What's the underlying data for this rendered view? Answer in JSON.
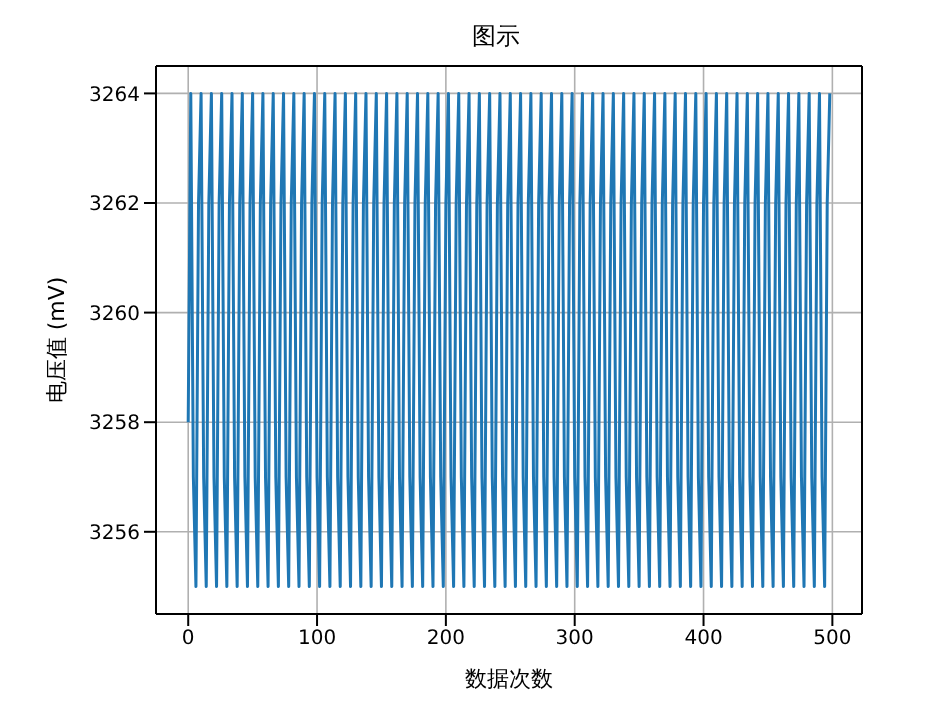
{
  "chart_data": {
    "type": "line",
    "title": "图示",
    "xlabel": "数据次数",
    "ylabel": "电压值 (mV)",
    "x": [
      0,
      2,
      4,
      6,
      8,
      10,
      12,
      14,
      16,
      18,
      20,
      22,
      24,
      26,
      28,
      30,
      32,
      34,
      36,
      38,
      40,
      42,
      44,
      46,
      48,
      50,
      52,
      54,
      56,
      58,
      60,
      62,
      64,
      66,
      68,
      70,
      72,
      74,
      76,
      78,
      80,
      82,
      84,
      86,
      88,
      90,
      92,
      94,
      96,
      98,
      100,
      102,
      104,
      106,
      108,
      110,
      112,
      114,
      116,
      118,
      120,
      122,
      124,
      126,
      128,
      130,
      132,
      134,
      136,
      138,
      140,
      142,
      144,
      146,
      148,
      150,
      152,
      154,
      156,
      158,
      160,
      162,
      164,
      166,
      168,
      170,
      172,
      174,
      176,
      178,
      180,
      182,
      184,
      186,
      188,
      190,
      192,
      194,
      196,
      198,
      200,
      202,
      204,
      206,
      208,
      210,
      212,
      214,
      216,
      218,
      220,
      222,
      224,
      226,
      228,
      230,
      232,
      234,
      236,
      238,
      240,
      242,
      244,
      246,
      248,
      250,
      252,
      254,
      256,
      258,
      260,
      262,
      264,
      266,
      268,
      270,
      272,
      274,
      276,
      278,
      280,
      282,
      284,
      286,
      288,
      290,
      292,
      294,
      296,
      298,
      300,
      302,
      304,
      306,
      308,
      310,
      312,
      314,
      316,
      318,
      320,
      322,
      324,
      326,
      328,
      330,
      332,
      334,
      336,
      338,
      340,
      342,
      344,
      346,
      348,
      350,
      352,
      354,
      356,
      358,
      360,
      362,
      364,
      366,
      368,
      370,
      372,
      374,
      376,
      378,
      380,
      382,
      384,
      386,
      388,
      390,
      392,
      394,
      396,
      398,
      400,
      402,
      404,
      406,
      408,
      410,
      412,
      414,
      416,
      418,
      420,
      422,
      424,
      426,
      428,
      430,
      432,
      434,
      436,
      438,
      440,
      442,
      444,
      446,
      448,
      450,
      452,
      454,
      456,
      458,
      460,
      462,
      464,
      466,
      468,
      470,
      472,
      474,
      476,
      478,
      480,
      482,
      484,
      486,
      488,
      490,
      492,
      494,
      496,
      498
    ],
    "series": [
      {
        "color": "#1f77b4",
        "values": [
          3258,
          3264,
          3257,
          3255,
          3262,
          3264,
          3257,
          3255,
          3262,
          3264,
          3257,
          3255,
          3262,
          3264,
          3257,
          3255,
          3262,
          3264,
          3257,
          3255,
          3262,
          3264,
          3257,
          3255,
          3262,
          3264,
          3257,
          3255,
          3262,
          3264,
          3257,
          3255,
          3262,
          3264,
          3257,
          3255,
          3262,
          3264,
          3257,
          3255,
          3262,
          3264,
          3257,
          3255,
          3262,
          3264,
          3257,
          3255,
          3262,
          3264,
          3257,
          3255,
          3262,
          3264,
          3257,
          3255,
          3262,
          3264,
          3257,
          3255,
          3262,
          3264,
          3257,
          3255,
          3262,
          3264,
          3257,
          3255,
          3262,
          3264,
          3257,
          3255,
          3262,
          3264,
          3257,
          3255,
          3262,
          3264,
          3257,
          3255,
          3262,
          3264,
          3257,
          3255,
          3262,
          3264,
          3257,
          3255,
          3262,
          3264,
          3257,
          3255,
          3262,
          3264,
          3257,
          3255,
          3262,
          3264,
          3257,
          3255,
          3262,
          3264,
          3257,
          3255,
          3262,
          3264,
          3257,
          3255,
          3262,
          3264,
          3257,
          3255,
          3262,
          3264,
          3257,
          3255,
          3262,
          3264,
          3257,
          3255,
          3262,
          3264,
          3257,
          3255,
          3262,
          3264,
          3257,
          3255,
          3262,
          3264,
          3257,
          3255,
          3262,
          3264,
          3257,
          3255,
          3262,
          3264,
          3257,
          3255,
          3262,
          3264,
          3257,
          3255,
          3262,
          3264,
          3257,
          3255,
          3262,
          3264,
          3257,
          3255,
          3262,
          3264,
          3257,
          3255,
          3262,
          3264,
          3257,
          3255,
          3262,
          3264,
          3257,
          3255,
          3262,
          3264,
          3257,
          3255,
          3262,
          3264,
          3257,
          3255,
          3262,
          3264,
          3257,
          3255,
          3262,
          3264,
          3257,
          3255,
          3262,
          3264,
          3257,
          3255,
          3262,
          3264,
          3257,
          3255,
          3262,
          3264,
          3257,
          3255,
          3262,
          3264,
          3257,
          3255,
          3262,
          3264,
          3257,
          3255,
          3262,
          3264,
          3257,
          3255,
          3262,
          3264,
          3257,
          3255,
          3262,
          3264,
          3257,
          3255,
          3262,
          3264,
          3257,
          3255,
          3262,
          3264,
          3257,
          3255,
          3262,
          3264,
          3257,
          3255,
          3262,
          3264,
          3257,
          3255,
          3262,
          3264,
          3257,
          3255,
          3262,
          3264,
          3257,
          3255,
          3262,
          3264,
          3257,
          3255,
          3262,
          3264,
          3257,
          3255,
          3262,
          3264,
          3257,
          3255,
          3262,
          3264
        ]
      }
    ],
    "xlim": [
      -25,
      523
    ],
    "xticks": [
      0,
      100,
      200,
      300,
      400,
      500
    ],
    "ylim": [
      3254.5,
      3264.5
    ],
    "yticks": [
      3256,
      3258,
      3260,
      3262,
      3264
    ],
    "grid": true,
    "legend": false,
    "marker": "none",
    "line_style": "solid"
  }
}
